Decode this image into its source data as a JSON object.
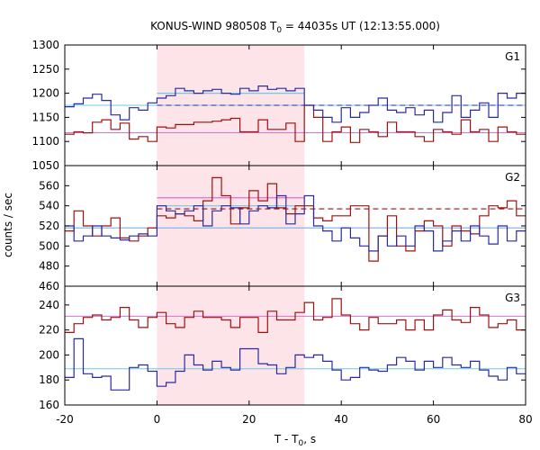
{
  "chart_data": {
    "type": "line",
    "title_main": "KONUS-WIND 980508 T",
    "title_sub": "0",
    "title_rest": " = 44035s UT (12:13:55.000)",
    "xlabel_main": "T - T",
    "xlabel_sub": "0",
    "xlabel_rest": ", s",
    "ylabel": "counts / sec",
    "xlim": [
      -20,
      80
    ],
    "x_ticks": [
      "-20",
      "0",
      "20",
      "40",
      "60",
      "80"
    ],
    "x_tick_values": [
      -20,
      0,
      20,
      40,
      60,
      80
    ],
    "highlight_interval": [
      0,
      32
    ],
    "colors": {
      "red": "#a01010",
      "blue": "#2a2aa0",
      "pink": "#e070d0",
      "cyan": "#70c8e8",
      "shade": "#fde4e8"
    },
    "step_x": [
      -20,
      -18,
      -16,
      -14,
      -12,
      -10,
      -8,
      -6,
      -4,
      -2,
      0,
      2,
      4,
      6,
      8,
      10,
      12,
      14,
      16,
      18,
      20,
      22,
      24,
      26,
      28,
      30,
      32,
      34,
      36,
      38,
      40,
      42,
      44,
      46,
      48,
      50,
      52,
      54,
      56,
      58,
      60,
      62,
      64,
      66,
      68,
      70,
      72,
      74,
      76,
      78,
      80
    ],
    "panels": [
      {
        "label": "G1",
        "ylim": [
          1050,
          1300
        ],
        "y_ticks": [
          1050,
          1100,
          1150,
          1200,
          1250,
          1300
        ],
        "blue_values": [
          1172,
          1178,
          1190,
          1198,
          1185,
          1155,
          1145,
          1170,
          1165,
          1180,
          1190,
          1195,
          1210,
          1205,
          1200,
          1205,
          1208,
          1200,
          1198,
          1210,
          1205,
          1215,
          1208,
          1210,
          1205,
          1210,
          1175,
          1165,
          1150,
          1140,
          1170,
          1150,
          1160,
          1175,
          1190,
          1165,
          1160,
          1170,
          1155,
          1165,
          1140,
          1160,
          1195,
          1150,
          1165,
          1180,
          1150,
          1200,
          1190,
          1200
        ],
        "red_values": [
          1115,
          1120,
          1118,
          1140,
          1145,
          1125,
          1138,
          1105,
          1110,
          1100,
          1130,
          1128,
          1135,
          1135,
          1140,
          1140,
          1142,
          1145,
          1148,
          1120,
          1120,
          1145,
          1125,
          1125,
          1138,
          1100,
          1175,
          1150,
          1100,
          1120,
          1130,
          1098,
          1125,
          1120,
          1110,
          1140,
          1120,
          1120,
          1110,
          1100,
          1125,
          1120,
          1115,
          1145,
          1120,
          1125,
          1100,
          1130,
          1120,
          1115
        ],
        "blue_bg": 1175,
        "red_bg": 1118,
        "blue_fit": 1200,
        "red_fit": null,
        "dashed": "blue",
        "dashed_level": 1175
      },
      {
        "label": "G2",
        "ylim": [
          460,
          580
        ],
        "y_ticks": [
          460,
          480,
          500,
          520,
          540,
          560
        ],
        "blue_values": [
          520,
          505,
          510,
          520,
          510,
          508,
          506,
          510,
          512,
          510,
          540,
          535,
          532,
          535,
          540,
          520,
          535,
          540,
          538,
          522,
          535,
          540,
          538,
          550,
          522,
          532,
          550,
          520,
          515,
          505,
          518,
          508,
          500,
          495,
          510,
          500,
          510,
          500,
          520,
          515,
          495,
          505,
          515,
          505,
          520,
          510,
          502,
          520,
          505,
          515
        ],
        "red_values": [
          515,
          535,
          520,
          510,
          520,
          528,
          508,
          505,
          510,
          518,
          530,
          528,
          532,
          530,
          525,
          545,
          568,
          550,
          522,
          538,
          555,
          545,
          562,
          538,
          532,
          540,
          540,
          528,
          525,
          530,
          530,
          540,
          540,
          485,
          510,
          530,
          500,
          495,
          515,
          525,
          520,
          500,
          520,
          515,
          512,
          530,
          540,
          538,
          545,
          530
        ],
        "blue_bg": 518,
        "red_bg": 518,
        "blue_fit": 540,
        "red_fit": 548,
        "dashed": "red",
        "dashed_level": 537
      },
      {
        "label": "G3",
        "ylim": [
          160,
          255
        ],
        "y_ticks": [
          160,
          180,
          200,
          220,
          240
        ],
        "blue_values": [
          182,
          213,
          185,
          182,
          183,
          172,
          172,
          190,
          192,
          187,
          175,
          178,
          187,
          200,
          192,
          188,
          195,
          190,
          188,
          205,
          205,
          193,
          192,
          185,
          190,
          200,
          198,
          200,
          195,
          188,
          180,
          182,
          190,
          188,
          187,
          192,
          198,
          195,
          188,
          195,
          190,
          198,
          192,
          190,
          195,
          188,
          183,
          180,
          190,
          185
        ],
        "red_values": [
          218,
          225,
          230,
          232,
          228,
          230,
          238,
          228,
          222,
          230,
          234,
          225,
          222,
          230,
          235,
          230,
          230,
          228,
          222,
          230,
          230,
          218,
          235,
          228,
          228,
          234,
          242,
          228,
          230,
          245,
          232,
          225,
          220,
          230,
          225,
          225,
          228,
          220,
          228,
          220,
          232,
          236,
          228,
          226,
          238,
          232,
          222,
          225,
          228,
          220
        ],
        "blue_bg": 189,
        "red_bg": 231,
        "blue_fit": null,
        "red_fit": null,
        "dashed": null,
        "dashed_level": null
      }
    ]
  }
}
